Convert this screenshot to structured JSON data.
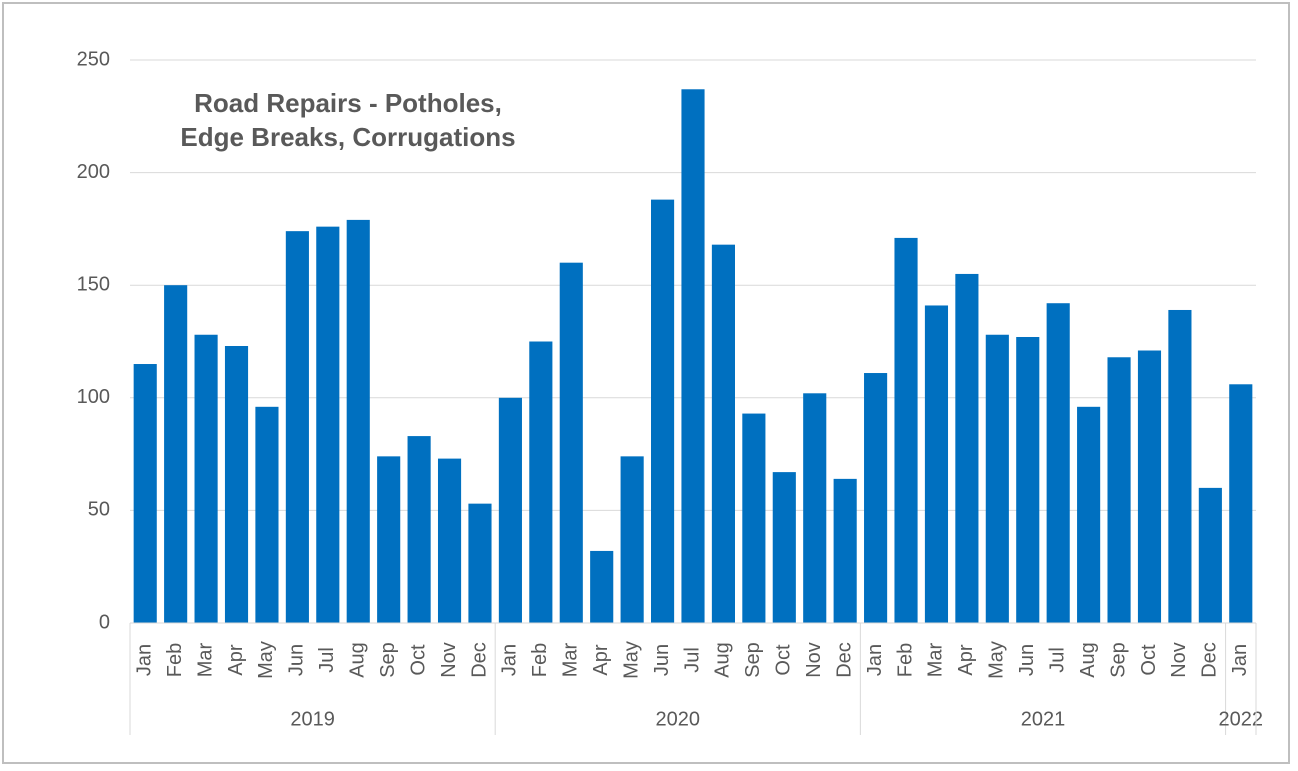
{
  "chart_data": {
    "type": "bar",
    "title": [
      "Road Repairs - Potholes,",
      "Edge Breaks, Corrugations"
    ],
    "categories": [
      [
        "Jan",
        "2019"
      ],
      [
        "Feb",
        "2019"
      ],
      [
        "Mar",
        "2019"
      ],
      [
        "Apr",
        "2019"
      ],
      [
        "May",
        "2019"
      ],
      [
        "Jun",
        "2019"
      ],
      [
        "Jul",
        "2019"
      ],
      [
        "Aug",
        "2019"
      ],
      [
        "Sep",
        "2019"
      ],
      [
        "Oct",
        "2019"
      ],
      [
        "Nov",
        "2019"
      ],
      [
        "Dec",
        "2019"
      ],
      [
        "Jan",
        "2020"
      ],
      [
        "Feb",
        "2020"
      ],
      [
        "Mar",
        "2020"
      ],
      [
        "Apr",
        "2020"
      ],
      [
        "May",
        "2020"
      ],
      [
        "Jun",
        "2020"
      ],
      [
        "Jul",
        "2020"
      ],
      [
        "Aug",
        "2020"
      ],
      [
        "Sep",
        "2020"
      ],
      [
        "Oct",
        "2020"
      ],
      [
        "Nov",
        "2020"
      ],
      [
        "Dec",
        "2020"
      ],
      [
        "Jan",
        "2021"
      ],
      [
        "Feb",
        "2021"
      ],
      [
        "Mar",
        "2021"
      ],
      [
        "Apr",
        "2021"
      ],
      [
        "May",
        "2021"
      ],
      [
        "Jun",
        "2021"
      ],
      [
        "Jul",
        "2021"
      ],
      [
        "Aug",
        "2021"
      ],
      [
        "Sep",
        "2021"
      ],
      [
        "Oct",
        "2021"
      ],
      [
        "Nov",
        "2021"
      ],
      [
        "Dec",
        "2021"
      ],
      [
        "Jan",
        "2022"
      ]
    ],
    "values": [
      115,
      150,
      128,
      123,
      96,
      174,
      176,
      179,
      74,
      83,
      73,
      53,
      100,
      125,
      160,
      32,
      74,
      188,
      237,
      168,
      93,
      67,
      102,
      64,
      111,
      171,
      141,
      155,
      128,
      127,
      142,
      96,
      118,
      121,
      139,
      60,
      106
    ],
    "color": "#0070c0",
    "ylim": [
      0,
      250
    ],
    "yticks": [
      0,
      50,
      100,
      150,
      200,
      250
    ],
    "grid": true
  }
}
